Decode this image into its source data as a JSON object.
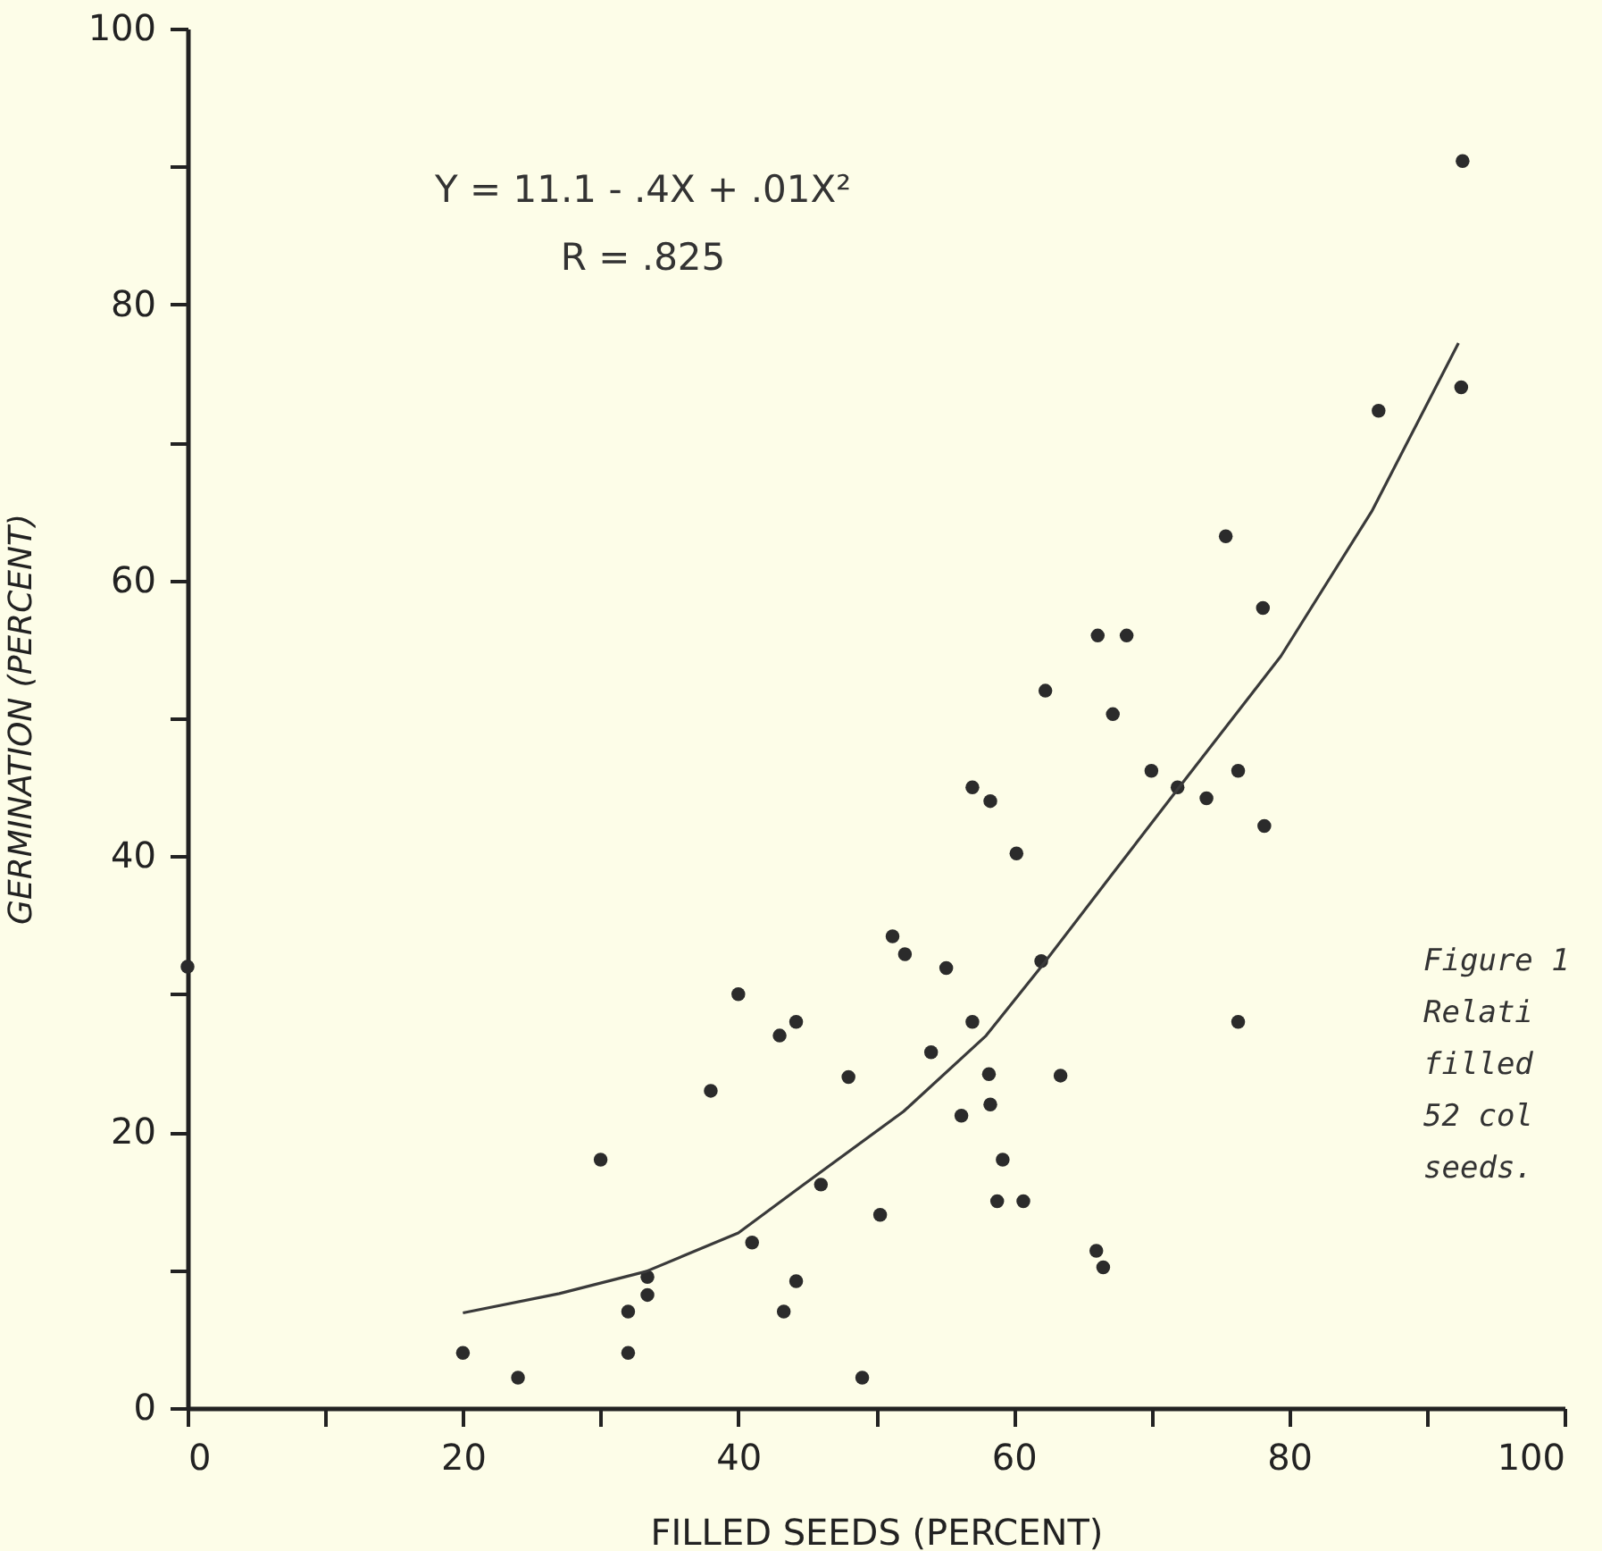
{
  "chart_data": {
    "type": "scatter",
    "xlabel": "FILLED SEEDS (PERCENT)",
    "ylabel": "GERMINATION (PERCENT)",
    "annotations": [
      "Y = 11.1 - .4X + .01X²",
      "R = .825",
      "Figure 1\n  Relati\n  filled\n  52 col\n  seeds."
    ],
    "series": [
      {
        "marker": "circle",
        "color": "#2b2b2b",
        "x": [
          0,
          20,
          24,
          30,
          32,
          32,
          33.4,
          33.4,
          38,
          40,
          41,
          43,
          44.2,
          43.3,
          44.2,
          49,
          46,
          48,
          50.3,
          51.2,
          52.1,
          54,
          55.1,
          56.2,
          57,
          57,
          58.3,
          60.2,
          58.2,
          58.3,
          59.2,
          58.8,
          60.7,
          62,
          63.4,
          66,
          66.5,
          70,
          71.9,
          74,
          76.3,
          78.2,
          76.3,
          92.6,
          92.5,
          86.5,
          75.4,
          78.1,
          66.1,
          68.2,
          62.3,
          67.2
        ],
        "values": [
          32,
          4,
          2.2,
          18,
          7,
          4,
          9.5,
          8.2,
          23,
          30,
          12,
          27,
          28,
          7,
          9.2,
          2.2,
          16.2,
          24,
          14,
          34.2,
          32.9,
          25.8,
          31.9,
          21.2,
          28,
          45,
          44,
          40.2,
          24.2,
          22,
          18,
          15,
          15,
          32.4,
          24.1,
          11.4,
          10.2,
          46.2,
          45,
          44.2,
          46.2,
          42.2,
          28,
          90.4,
          74,
          72.3,
          63.2,
          58,
          56,
          56,
          52,
          50.3
        ]
      },
      {
        "type": "line",
        "line_style": "solid",
        "color": "#3a3a3a",
        "x": [
          20,
          27,
          33.3,
          40,
          44.6,
          52,
          58,
          62,
          67,
          72.4,
          79.4,
          86,
          92.3
        ],
        "values": [
          6.9,
          8.3,
          9.9,
          12.7,
          16.1,
          21.5,
          27,
          32,
          38.5,
          45.5,
          54.5,
          65,
          77.2
        ]
      }
    ],
    "xlim": [
      0,
      100
    ],
    "ylim": [
      0,
      100
    ],
    "xticks": [
      0,
      {
        "value": 10,
        "label": null
      },
      20,
      {
        "value": 30,
        "label": null
      },
      40,
      {
        "value": 50,
        "label": null
      },
      60,
      {
        "value": 70,
        "label": null
      },
      80,
      {
        "value": 90,
        "label": null
      },
      100
    ],
    "yticks": [
      0,
      {
        "value": 10,
        "label": null
      },
      20,
      {
        "value": 30,
        "label": null
      },
      40,
      {
        "value": 50,
        "label": null
      },
      60,
      {
        "value": 70,
        "label": null
      },
      80,
      {
        "value": 90,
        "label": null
      },
      100
    ],
    "grid": false
  }
}
